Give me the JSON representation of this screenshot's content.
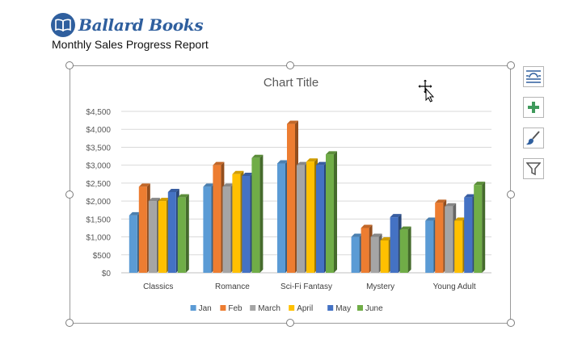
{
  "brand": {
    "name": "Ballard Books",
    "color": "#2f5f9e",
    "icon": "open-book-icon"
  },
  "report_title": "Monthly Sales Progress Report",
  "side_toolbar": [
    {
      "name": "layout-options-button",
      "icon": "layout-options-icon"
    },
    {
      "name": "chart-elements-button",
      "icon": "plus-icon"
    },
    {
      "name": "chart-styles-button",
      "icon": "brush-icon"
    },
    {
      "name": "chart-filters-button",
      "icon": "filter-icon"
    }
  ],
  "chart_data": {
    "type": "bar",
    "title": "Chart Title",
    "categories": [
      "Classics",
      "Romance",
      "Sci-Fi Fantasy",
      "Mystery",
      "Young Adult"
    ],
    "series": [
      {
        "name": "Jan",
        "color": "#5b9bd5",
        "values": [
          1600,
          2400,
          3050,
          1000,
          1450
        ]
      },
      {
        "name": "Feb",
        "color": "#ed7d31",
        "values": [
          2400,
          3000,
          4150,
          1250,
          1950
        ]
      },
      {
        "name": "March",
        "color": "#a5a5a5",
        "values": [
          2000,
          2400,
          3000,
          1000,
          1850
        ]
      },
      {
        "name": "April",
        "color": "#ffc000",
        "values": [
          2000,
          2750,
          3100,
          900,
          1450
        ]
      },
      {
        "name": "May",
        "color": "#4472c4",
        "values": [
          2250,
          2700,
          3000,
          1550,
          2100
        ]
      },
      {
        "name": "June",
        "color": "#70ad47",
        "values": [
          2100,
          3200,
          3300,
          1200,
          2450
        ]
      }
    ],
    "y_ticks": [
      "$0",
      "$500",
      "$1,000",
      "$1,500",
      "$2,000",
      "$2,500",
      "$3,000",
      "$3,500",
      "$4,000",
      "$4,500"
    ],
    "ylim": [
      0,
      4500
    ],
    "grid": true,
    "legend_position": "bottom"
  }
}
